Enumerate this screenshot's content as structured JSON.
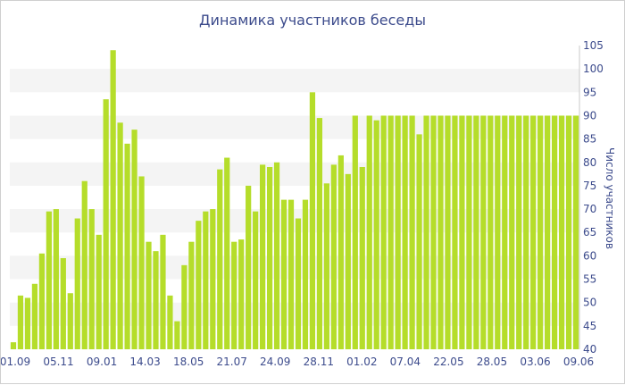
{
  "chart_data": {
    "type": "bar",
    "title": "Динамика участников беседы",
    "ylabel": "Число участников",
    "ylim": [
      40,
      105
    ],
    "yticks": [
      40,
      45,
      50,
      55,
      60,
      65,
      70,
      75,
      80,
      85,
      90,
      95,
      100,
      105
    ],
    "xtick_labels": [
      "01.09",
      "05.11",
      "09.01",
      "14.03",
      "18.05",
      "21.07",
      "24.09",
      "28.11",
      "01.02",
      "07.04",
      "22.05",
      "28.05",
      "03.06",
      "09.06"
    ],
    "values": [
      41.5,
      51.5,
      51,
      54,
      60.5,
      69.5,
      70,
      59.5,
      52,
      68,
      76,
      70,
      64.5,
      93.5,
      104,
      88.5,
      84,
      87,
      77,
      63,
      61,
      64.5,
      51.5,
      46,
      58,
      63,
      67.5,
      69.5,
      70,
      78.5,
      81,
      63,
      63.5,
      75,
      69.5,
      79.5,
      79,
      80,
      72,
      72,
      68,
      72,
      95,
      89.5,
      75.5,
      79.5,
      81.5,
      77.5,
      90,
      79,
      90,
      89,
      90,
      90,
      90,
      90,
      90,
      86,
      90,
      90,
      90,
      90,
      90,
      90,
      90,
      90,
      90,
      90,
      90,
      90,
      90,
      90,
      90,
      90,
      90,
      90,
      90,
      90,
      90,
      90
    ],
    "grid": true,
    "legend": "none",
    "colors": {
      "bar": "#b5dd2a",
      "band": "#f4f4f4",
      "text": "#3c4b8c"
    }
  }
}
